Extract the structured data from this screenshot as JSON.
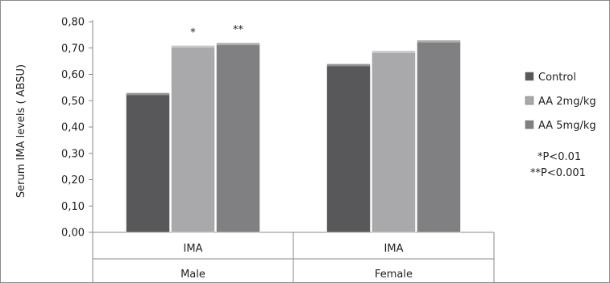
{
  "chart_data": {
    "type": "bar",
    "title": "",
    "xlabel": "",
    "ylabel": "Serum IMA levels ( ABSU)",
    "ylim": [
      0,
      0.8
    ],
    "yticks": [
      "0,00",
      "0,10",
      "0,20",
      "0,30",
      "0,40",
      "0,50",
      "0,60",
      "0,70",
      "0,80"
    ],
    "ytick_values": [
      0,
      0.1,
      0.2,
      0.3,
      0.4,
      0.5,
      0.6,
      0.7,
      0.8
    ],
    "grid": false,
    "legend_position": "right",
    "groups": [
      {
        "category": "IMA",
        "group": "Male"
      },
      {
        "category": "IMA",
        "group": "Female"
      }
    ],
    "series": [
      {
        "name": "Control",
        "values": [
          0.53,
          0.64
        ],
        "color": "#58585a",
        "annotations": [
          "",
          ""
        ]
      },
      {
        "name": "AA 2mg/kg",
        "values": [
          0.71,
          0.69
        ],
        "color": "#a9a9ab",
        "annotations": [
          "*",
          ""
        ]
      },
      {
        "name": "AA 5mg/kg",
        "values": [
          0.72,
          0.73
        ],
        "color": "#808082",
        "annotations": [
          "**",
          ""
        ]
      }
    ],
    "notes": [
      "*P<0.01",
      "**P<0.001"
    ]
  }
}
